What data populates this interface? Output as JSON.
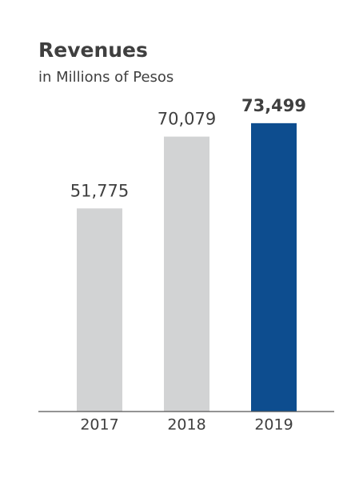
{
  "chart_data": {
    "type": "bar",
    "title": "Revenues",
    "subtitle": "in Millions of Pesos",
    "categories": [
      "2017",
      "2018",
      "2019"
    ],
    "values": [
      51775,
      70079,
      73499
    ],
    "value_labels": [
      "51,775",
      "70,079",
      "73,499"
    ],
    "colors": [
      "#d2d3d4",
      "#d2d3d4",
      "#0d4d8f"
    ]
  }
}
